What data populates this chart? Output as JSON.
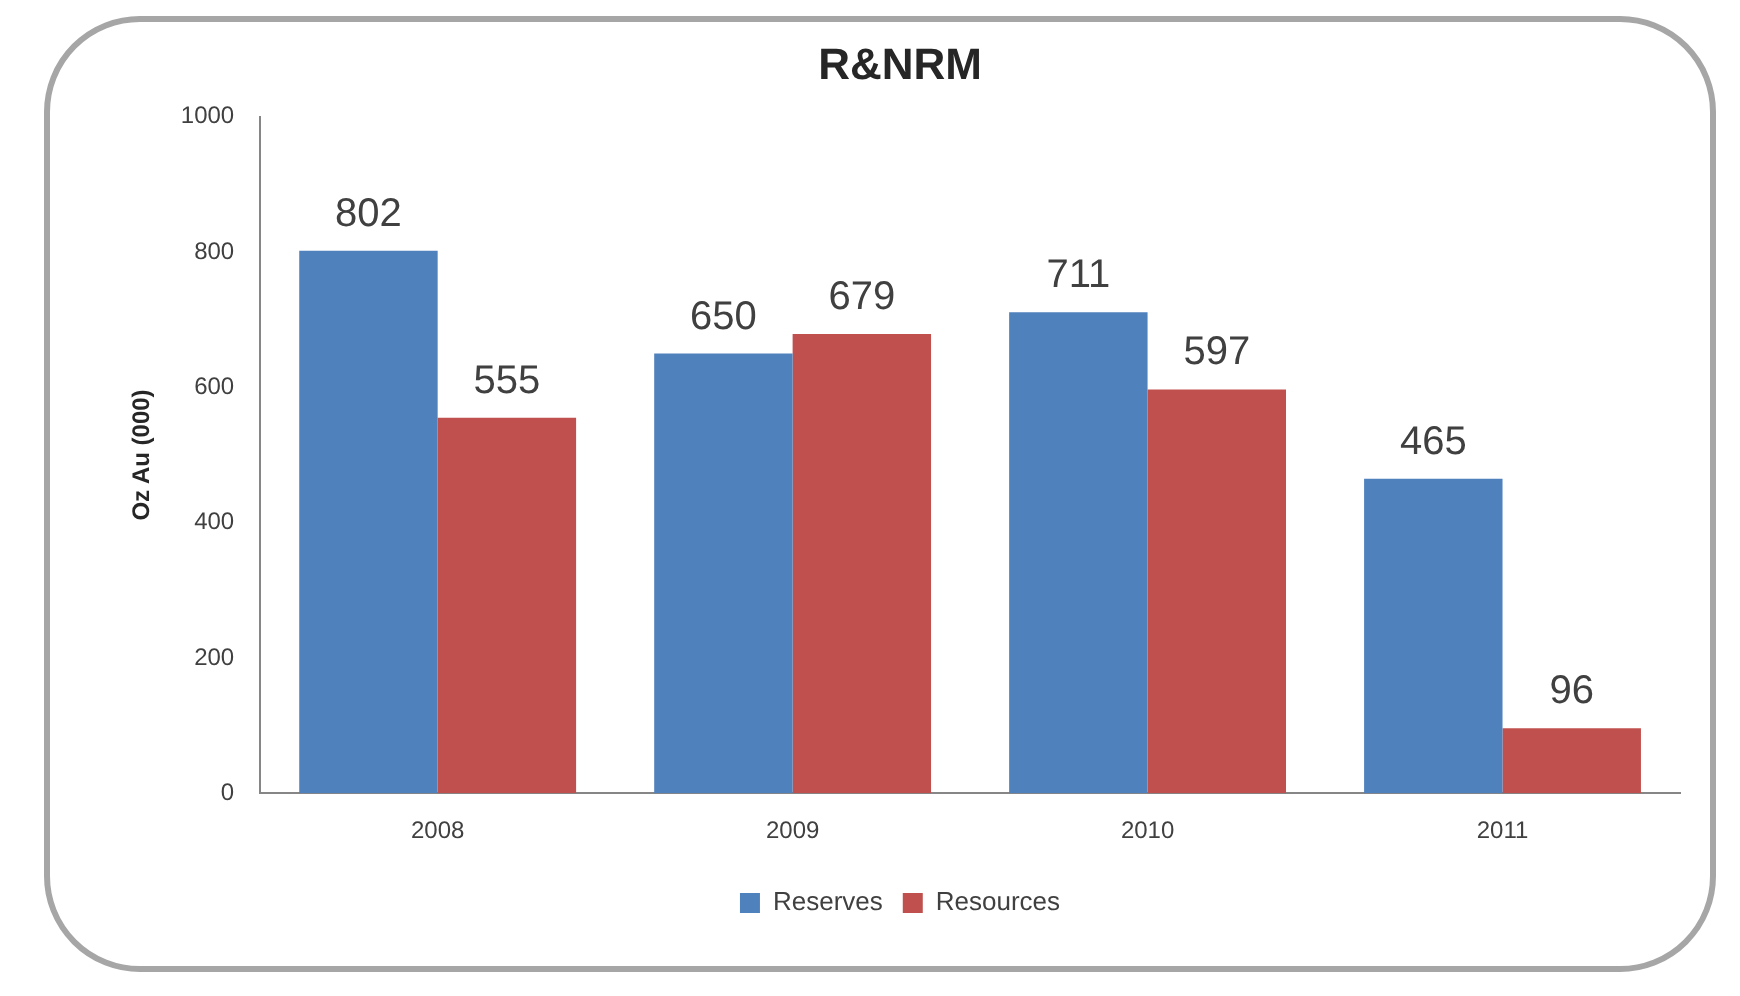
{
  "chart_data": {
    "type": "bar",
    "title": "R&NRM",
    "ylabel": "Oz Au (000)",
    "categories": [
      "2008",
      "2009",
      "2010",
      "2011"
    ],
    "series": [
      {
        "name": "Reserves",
        "color": "#4f81bd",
        "values": [
          802,
          650,
          711,
          465
        ]
      },
      {
        "name": "Resources",
        "color": "#c0504d",
        "values": [
          555,
          679,
          597,
          96
        ]
      }
    ],
    "ylim": [
      0,
      1000
    ],
    "yticks": [
      0,
      200,
      400,
      600,
      800,
      1000
    ],
    "grid": false,
    "legend": "bottom",
    "data_labels": true
  }
}
